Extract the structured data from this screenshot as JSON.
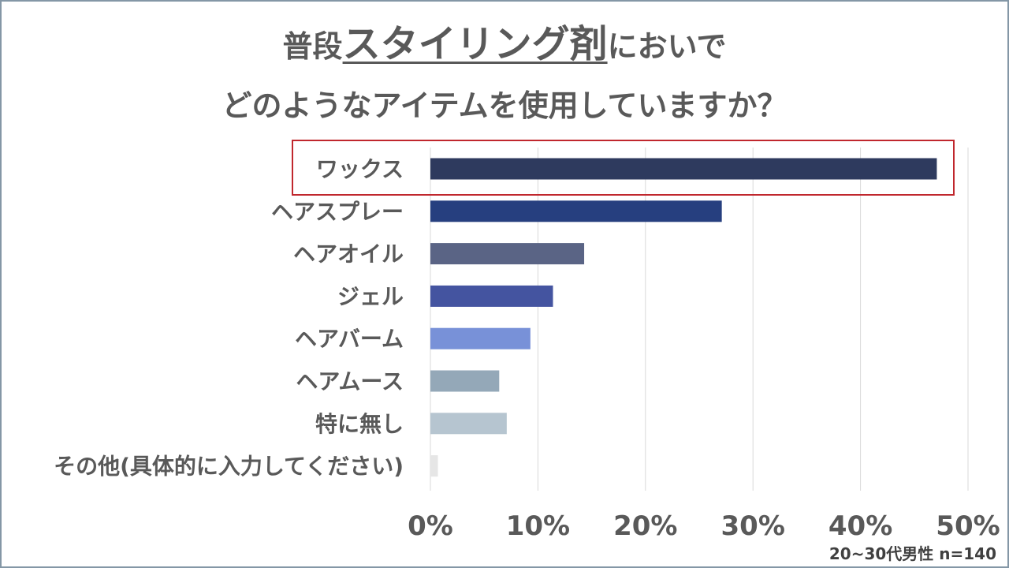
{
  "title": {
    "line1_prefix": "普段",
    "line1_emphasis": "スタイリング剤",
    "line1_suffix": "においで",
    "line2": "どのようなアイテムを使用していますか？"
  },
  "note": "20~30代男性 n=140",
  "colors": {
    "highlight_border": "#c0272d",
    "grid": "#d9d9d9",
    "label": "#595959"
  },
  "chart_data": {
    "type": "bar",
    "orientation": "horizontal",
    "categories": [
      "ワックス",
      "ヘアスプレー",
      "ヘアオイル",
      "ジェル",
      "ヘアバーム",
      "ヘアムース",
      "特に無し",
      "その他(具体的に入力してください)"
    ],
    "values": [
      47.1,
      27.1,
      14.3,
      11.4,
      9.3,
      6.4,
      7.1,
      0.7
    ],
    "colors": [
      "#2e3a5e",
      "#263f7f",
      "#5a6485",
      "#4454a0",
      "#7891d8",
      "#94a8b8",
      "#b6c5d0",
      "#e6e6e6"
    ],
    "xlim": [
      0,
      50
    ],
    "xticks": [
      "0%",
      "10%",
      "20%",
      "30%",
      "40%",
      "50%"
    ],
    "grid": true,
    "highlighted_category": "ワックス"
  }
}
